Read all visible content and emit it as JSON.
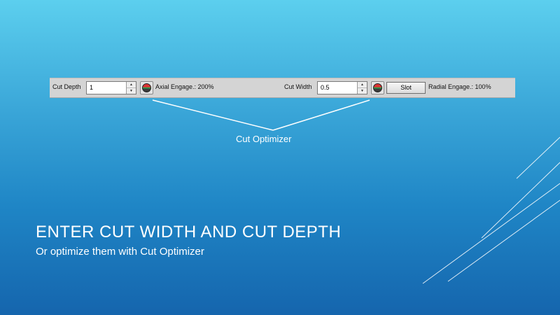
{
  "toolbar": {
    "cut_depth_label": "Cut Depth",
    "cut_depth_value": "1",
    "axial_engage_text": "Axial Engage.: 200%",
    "cut_width_label": "Cut Width",
    "cut_width_value": "0.5",
    "slot_button_label": "Slot",
    "radial_engage_text": "Radial Engage.: 100%"
  },
  "callout": {
    "label": "Cut Optimizer"
  },
  "slide": {
    "title": "ENTER CUT WIDTH AND CUT DEPTH",
    "subtitle": "Or optimize them with Cut Optimizer"
  },
  "colors": {
    "background_top": "#5ccfee",
    "background_bottom": "#1565ad",
    "text": "#ffffff",
    "toolbar": "#d4d4d4"
  },
  "icons": {
    "optimizer": "cut-optimizer-icon",
    "spin_up": "spin-up-arrow-icon",
    "spin_down": "spin-down-arrow-icon"
  }
}
